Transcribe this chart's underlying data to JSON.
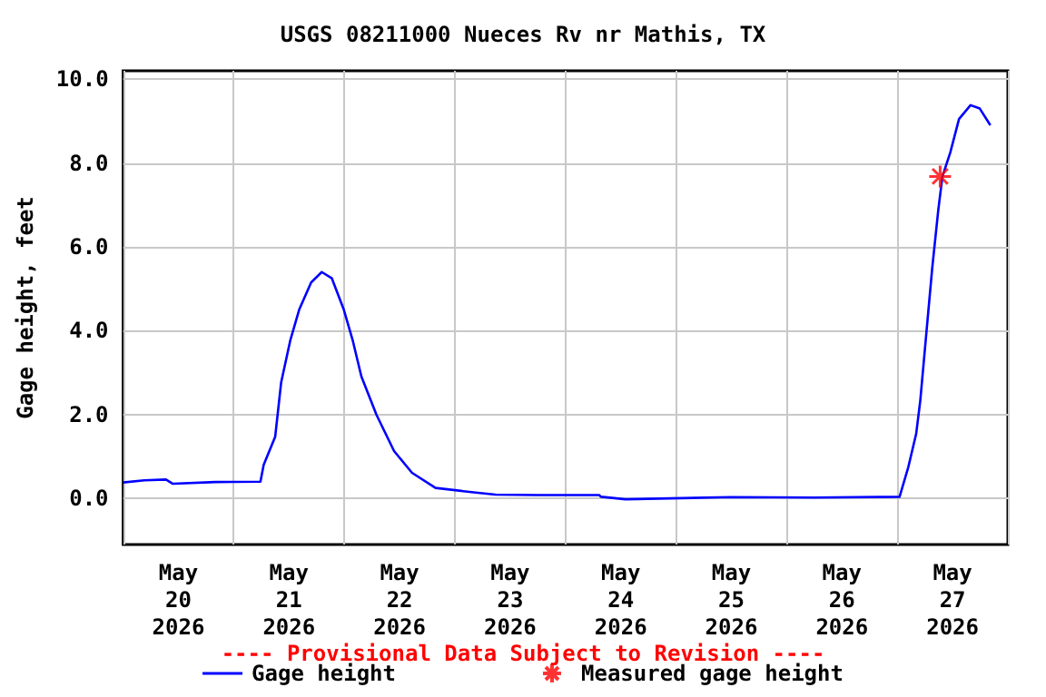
{
  "chart_data": {
    "type": "line",
    "title": "USGS 08211000 Nueces Rv nr Mathis, TX",
    "ylabel": "Gage height, feet",
    "annotations": [
      "---- Provisional Data Subject to Revision ----"
    ],
    "xlim": [
      "2026-05-20T00:00",
      "2026-05-28T00:00"
    ],
    "xticks": [
      {
        "value": "2026-05-20T00:00",
        "label": null
      },
      {
        "value": "2026-05-20T12:00",
        "label": "May\n20\n2026"
      },
      {
        "value": "2026-05-21T00:00",
        "label": null
      },
      {
        "value": "2026-05-21T12:00",
        "label": "May\n21\n2026"
      },
      {
        "value": "2026-05-22T00:00",
        "label": null
      },
      {
        "value": "2026-05-22T12:00",
        "label": "May\n22\n2026"
      },
      {
        "value": "2026-05-23T00:00",
        "label": null
      },
      {
        "value": "2026-05-23T12:00",
        "label": "May\n23\n2026"
      },
      {
        "value": "2026-05-24T00:00",
        "label": null
      },
      {
        "value": "2026-05-24T12:00",
        "label": "May\n24\n2026"
      },
      {
        "value": "2026-05-25T00:00",
        "label": null
      },
      {
        "value": "2026-05-25T12:00",
        "label": "May\n25\n2026"
      },
      {
        "value": "2026-05-26T00:00",
        "label": null
      },
      {
        "value": "2026-05-26T12:00",
        "label": "May\n26\n2026"
      },
      {
        "value": "2026-05-27T00:00",
        "label": null
      },
      {
        "value": "2026-05-27T12:00",
        "label": "May\n27\n2026"
      },
      {
        "value": "2026-05-28T00:00",
        "label": null
      }
    ],
    "ylim": [
      -1.1,
      10.2
    ],
    "yticks": [
      {
        "value": 0,
        "label": "0.0"
      },
      {
        "value": 2,
        "label": "2.0"
      },
      {
        "value": 4,
        "label": "4.0"
      },
      {
        "value": 6,
        "label": "6.0"
      },
      {
        "value": 8,
        "label": "8.0"
      },
      {
        "value": 10,
        "label": "10.0"
      }
    ],
    "grid": true,
    "legend": "bottom",
    "series": [
      {
        "name": "Gage height",
        "color": "#0000ff",
        "marker": "none",
        "line_style": "solid",
        "x": [
          "2026-05-20T00:00",
          "2026-05-20T04:36",
          "2026-05-20T09:18",
          "2026-05-20T10:48",
          "2026-05-20T20:00",
          "2026-05-21T05:48",
          "2026-05-21T06:30",
          "2026-05-21T09:00",
          "2026-05-21T10:18",
          "2026-05-21T12:18",
          "2026-05-21T14:12",
          "2026-05-21T16:48",
          "2026-05-21T19:06",
          "2026-05-21T21:18",
          "2026-05-21T23:54",
          "2026-05-22T01:48",
          "2026-05-22T03:42",
          "2026-05-22T07:00",
          "2026-05-22T10:48",
          "2026-05-22T14:42",
          "2026-05-22T19:48",
          "2026-05-23T03:36",
          "2026-05-23T08:48",
          "2026-05-23T17:48",
          "2026-05-24T07:18",
          "2026-05-24T07:42",
          "2026-05-24T13:00",
          "2026-05-25T12:00",
          "2026-05-26T06:00",
          "2026-05-27T00:30",
          "2026-05-27T02:24",
          "2026-05-27T04:06",
          "2026-05-27T05:00",
          "2026-05-27T06:18",
          "2026-05-27T07:36",
          "2026-05-27T08:54",
          "2026-05-27T09:48",
          "2026-05-27T11:30",
          "2026-05-27T13:24",
          "2026-05-27T15:54",
          "2026-05-27T17:54",
          "2026-05-27T20:12"
        ],
        "values": [
          0.38,
          0.43,
          0.45,
          0.35,
          0.39,
          0.4,
          0.8,
          1.47,
          2.77,
          3.78,
          4.5,
          5.15,
          5.4,
          5.25,
          4.5,
          3.78,
          2.91,
          1.99,
          1.13,
          0.61,
          0.25,
          0.15,
          0.09,
          0.08,
          0.08,
          0.04,
          -0.02,
          0.03,
          0.02,
          0.04,
          0.75,
          1.54,
          2.34,
          3.93,
          5.51,
          6.88,
          7.68,
          8.25,
          9.05,
          9.38,
          9.3,
          8.9
        ]
      },
      {
        "name": "Measured gage height",
        "type": "scatter",
        "color": "#ff0000",
        "marker": "cross",
        "x": [
          "2026-05-27T09:18"
        ],
        "values": [
          7.68
        ]
      }
    ]
  }
}
